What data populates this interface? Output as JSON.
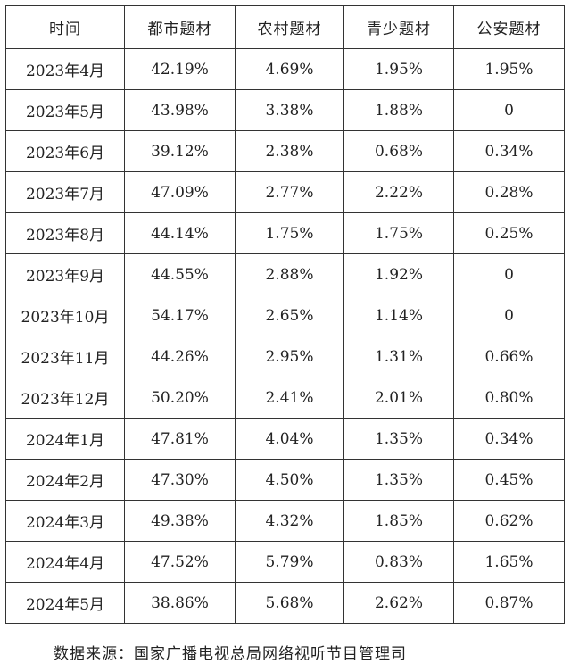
{
  "table": {
    "headers": [
      "时间",
      "都市题材",
      "农村题材",
      "青少题材",
      "公安题材"
    ],
    "rows": [
      [
        "2023年4月",
        "42.19%",
        "4.69%",
        "1.95%",
        "1.95%"
      ],
      [
        "2023年5月",
        "43.98%",
        "3.38%",
        "1.88%",
        "0"
      ],
      [
        "2023年6月",
        "39.12%",
        "2.38%",
        "0.68%",
        "0.34%"
      ],
      [
        "2023年7月",
        "47.09%",
        "2.77%",
        "2.22%",
        "0.28%"
      ],
      [
        "2023年8月",
        "44.14%",
        "1.75%",
        "1.75%",
        "0.25%"
      ],
      [
        "2023年9月",
        "44.55%",
        "2.88%",
        "1.92%",
        "0"
      ],
      [
        "2023年10月",
        "54.17%",
        "2.65%",
        "1.14%",
        "0"
      ],
      [
        "2023年11月",
        "44.26%",
        "2.95%",
        "1.31%",
        "0.66%"
      ],
      [
        "2023年12月",
        "50.20%",
        "2.41%",
        "2.01%",
        "0.80%"
      ],
      [
        "2024年1月",
        "47.81%",
        "4.04%",
        "1.35%",
        "0.34%"
      ],
      [
        "2024年2月",
        "47.30%",
        "4.50%",
        "1.35%",
        "0.45%"
      ],
      [
        "2024年3月",
        "49.38%",
        "4.32%",
        "1.85%",
        "0.62%"
      ],
      [
        "2024年4月",
        "47.52%",
        "5.79%",
        "0.83%",
        "1.65%"
      ],
      [
        "2024年5月",
        "38.86%",
        "5.68%",
        "2.62%",
        "0.87%"
      ]
    ]
  },
  "source_note": "数据来源：国家广播电视总局网络视听节目管理司"
}
